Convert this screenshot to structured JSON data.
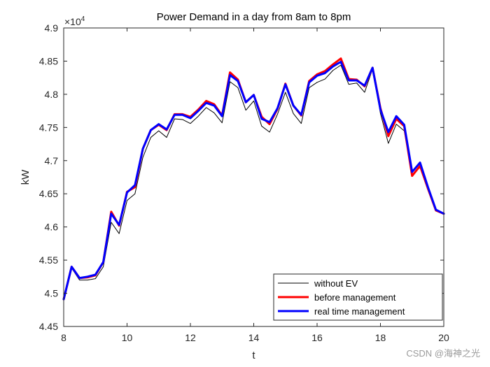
{
  "chart_data": {
    "type": "line",
    "title": "Power Demand in a day from 8am to 8pm",
    "xlabel": "t",
    "ylabel": "kW",
    "exponent_label": "×10",
    "exponent_power": "4",
    "xlim": [
      8,
      20
    ],
    "ylim": [
      4.45,
      4.9
    ],
    "xticks": [
      8,
      10,
      12,
      14,
      16,
      18,
      20
    ],
    "yticks": [
      4.45,
      4.5,
      4.55,
      4.6,
      4.65,
      4.7,
      4.75,
      4.8,
      4.85,
      4.9
    ],
    "grid": false,
    "legend_position": "bottom-right",
    "x": [
      8,
      8.25,
      8.5,
      8.75,
      9,
      9.25,
      9.5,
      9.75,
      10,
      10.25,
      10.5,
      10.75,
      11,
      11.25,
      11.5,
      11.75,
      12,
      12.25,
      12.5,
      12.75,
      13,
      13.25,
      13.5,
      13.75,
      14,
      14.25,
      14.5,
      14.75,
      15,
      15.25,
      15.5,
      15.75,
      16,
      16.25,
      16.5,
      16.75,
      17,
      17.25,
      17.5,
      17.75,
      18,
      18.25,
      18.5,
      18.75,
      19,
      19.25,
      19.5,
      19.75,
      20
    ],
    "series": [
      {
        "name": "without EV",
        "color": "#000000",
        "width": 1,
        "values": [
          4.491,
          4.538,
          4.52,
          4.52,
          4.522,
          4.54,
          4.607,
          4.59,
          4.64,
          4.65,
          4.705,
          4.735,
          4.745,
          4.735,
          4.763,
          4.762,
          4.756,
          4.767,
          4.78,
          4.772,
          4.757,
          4.819,
          4.81,
          4.776,
          4.79,
          4.752,
          4.743,
          4.77,
          4.803,
          4.771,
          4.756,
          4.81,
          4.818,
          4.823,
          4.836,
          4.844,
          4.815,
          4.817,
          4.803,
          4.838,
          4.771,
          4.726,
          4.755,
          4.745,
          4.678,
          4.69,
          4.655,
          4.624,
          4.62
        ]
      },
      {
        "name": "before management",
        "color": "#ff0000",
        "width": 3,
        "values": [
          4.491,
          4.54,
          4.523,
          4.524,
          4.527,
          4.547,
          4.623,
          4.602,
          4.653,
          4.66,
          4.718,
          4.746,
          4.754,
          4.746,
          4.77,
          4.77,
          4.766,
          4.777,
          4.79,
          4.785,
          4.768,
          4.833,
          4.822,
          4.788,
          4.799,
          4.766,
          4.755,
          4.778,
          4.816,
          4.783,
          4.768,
          4.82,
          4.83,
          4.835,
          4.845,
          4.854,
          4.823,
          4.822,
          4.812,
          4.84,
          4.779,
          4.737,
          4.763,
          4.752,
          4.677,
          4.692,
          4.658,
          4.625,
          4.62
        ]
      },
      {
        "name": "real time management",
        "color": "#0000ff",
        "width": 3,
        "values": [
          4.491,
          4.54,
          4.523,
          4.525,
          4.528,
          4.547,
          4.62,
          4.603,
          4.652,
          4.663,
          4.718,
          4.746,
          4.755,
          4.747,
          4.769,
          4.769,
          4.764,
          4.775,
          4.787,
          4.783,
          4.767,
          4.829,
          4.82,
          4.788,
          4.799,
          4.763,
          4.758,
          4.779,
          4.815,
          4.783,
          4.769,
          4.818,
          4.828,
          4.832,
          4.842,
          4.849,
          4.821,
          4.821,
          4.813,
          4.84,
          4.777,
          4.743,
          4.767,
          4.754,
          4.683,
          4.697,
          4.66,
          4.626,
          4.62
        ]
      }
    ]
  },
  "watermark": "CSDN @海神之光"
}
